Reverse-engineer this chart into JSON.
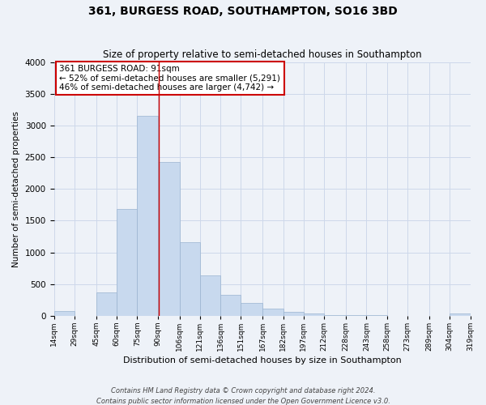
{
  "title": "361, BURGESS ROAD, SOUTHAMPTON, SO16 3BD",
  "subtitle": "Size of property relative to semi-detached houses in Southampton",
  "xlabel": "Distribution of semi-detached houses by size in Southampton",
  "ylabel": "Number of semi-detached properties",
  "bin_edges": [
    14,
    29,
    45,
    60,
    75,
    90,
    106,
    121,
    136,
    151,
    167,
    182,
    197,
    212,
    228,
    243,
    258,
    273,
    289,
    304,
    319
  ],
  "bar_heights": [
    75,
    0,
    365,
    1680,
    3160,
    2430,
    1160,
    635,
    330,
    195,
    115,
    60,
    40,
    15,
    10,
    5,
    3,
    2,
    1,
    30
  ],
  "bar_color": "#c8d9ee",
  "bar_edgecolor": "#9ab3d0",
  "grid_color": "#cdd8ea",
  "bg_color": "#eef2f8",
  "vline_x": 91,
  "vline_color": "#cc0000",
  "annotation_text": "361 BURGESS ROAD: 91sqm\n← 52% of semi-detached houses are smaller (5,291)\n46% of semi-detached houses are larger (4,742) →",
  "annotation_box_color": "#ffffff",
  "annotation_box_edgecolor": "#cc0000",
  "xtick_labels": [
    "14sqm",
    "29sqm",
    "45sqm",
    "60sqm",
    "75sqm",
    "90sqm",
    "106sqm",
    "121sqm",
    "136sqm",
    "151sqm",
    "167sqm",
    "182sqm",
    "197sqm",
    "212sqm",
    "228sqm",
    "243sqm",
    "258sqm",
    "273sqm",
    "289sqm",
    "304sqm",
    "319sqm"
  ],
  "ylim": [
    0,
    4000
  ],
  "yticks": [
    0,
    500,
    1000,
    1500,
    2000,
    2500,
    3000,
    3500,
    4000
  ],
  "footer_line1": "Contains HM Land Registry data © Crown copyright and database right 2024.",
  "footer_line2": "Contains public sector information licensed under the Open Government Licence v3.0."
}
